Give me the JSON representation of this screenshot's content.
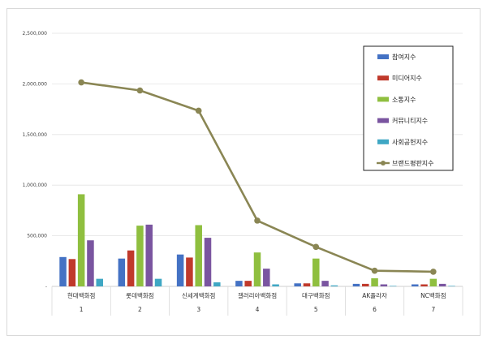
{
  "chart_data": {
    "type": "bar",
    "categories": [
      "현대백화점",
      "롯데백화점",
      "신세계백화점",
      "갤러리아백화점",
      "대구백화점",
      "AK플라자",
      "NC백화점"
    ],
    "category_numbers": [
      "1",
      "2",
      "3",
      "4",
      "5",
      "6",
      "7"
    ],
    "y_ticks": [
      "-",
      "500,000",
      "1,000,000",
      "1,500,000",
      "2,000,000",
      "2,500,000"
    ],
    "ylim": [
      0,
      2500000
    ],
    "grid": true,
    "legend_position": "right",
    "series": [
      {
        "name": "참여지수",
        "type": "bar",
        "color": "#4472c4",
        "values": [
          290000,
          275000,
          315000,
          55000,
          30000,
          25000,
          20000
        ]
      },
      {
        "name": "미디어지수",
        "type": "bar",
        "color": "#c0392b",
        "values": [
          270000,
          355000,
          285000,
          55000,
          30000,
          25000,
          20000
        ]
      },
      {
        "name": "소통지수",
        "type": "bar",
        "color": "#8fbf3f",
        "values": [
          910000,
          600000,
          605000,
          335000,
          275000,
          80000,
          75000
        ]
      },
      {
        "name": "커뮤니티지수",
        "type": "bar",
        "color": "#7a55a0",
        "values": [
          455000,
          610000,
          480000,
          175000,
          55000,
          20000,
          25000
        ]
      },
      {
        "name": "사회공헌지수",
        "type": "bar",
        "color": "#3fa7c4",
        "values": [
          75000,
          75000,
          40000,
          20000,
          10000,
          5000,
          5000
        ]
      },
      {
        "name": "브랜드평판지수",
        "type": "line",
        "color": "#8a8654",
        "values": [
          2015000,
          1935000,
          1735000,
          650000,
          390000,
          155000,
          145000
        ]
      }
    ]
  }
}
